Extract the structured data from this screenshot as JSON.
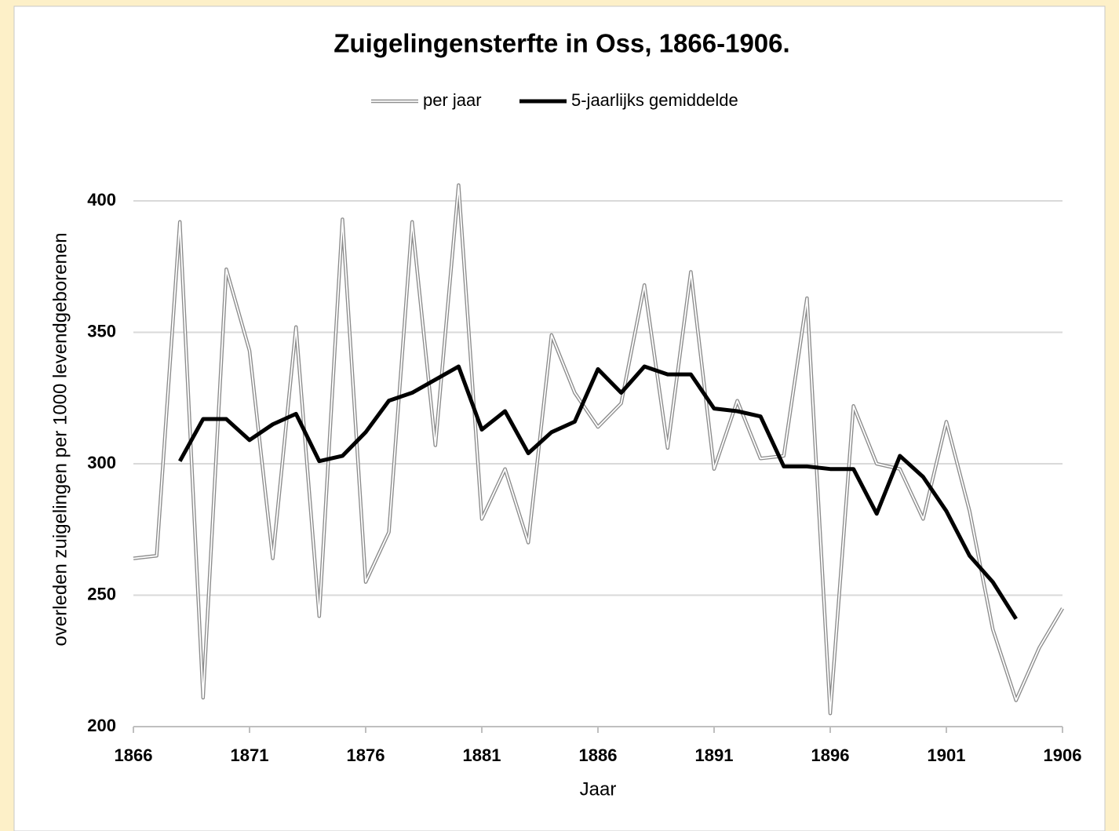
{
  "chart_data": {
    "type": "line",
    "title": "Zuigelingensterfte in Oss, 1866-1906.",
    "xlabel": "Jaar",
    "ylabel": "overleden zuigelingen per 1000 levendgeborenen",
    "x": [
      1866,
      1867,
      1868,
      1869,
      1870,
      1871,
      1872,
      1873,
      1874,
      1875,
      1876,
      1877,
      1878,
      1879,
      1880,
      1881,
      1882,
      1883,
      1884,
      1885,
      1886,
      1887,
      1888,
      1889,
      1890,
      1891,
      1892,
      1893,
      1894,
      1895,
      1896,
      1897,
      1898,
      1899,
      1900,
      1901,
      1902,
      1903,
      1904,
      1905,
      1906
    ],
    "series": [
      {
        "name": "per jaar",
        "color": "#8c8c8c",
        "style": "double",
        "values": [
          264,
          265,
          392,
          211,
          374,
          343,
          264,
          352,
          242,
          393,
          255,
          274,
          392,
          307,
          406,
          279,
          298,
          270,
          349,
          327,
          314,
          323,
          368,
          306,
          373,
          298,
          324,
          302,
          303,
          363,
          205,
          322,
          300,
          298,
          279,
          316,
          282,
          237,
          210,
          230,
          245
        ]
      },
      {
        "name": "5-jaarlijks gemiddelde",
        "color": "#000000",
        "style": "solid",
        "values": [
          null,
          null,
          301,
          317,
          317,
          309,
          315,
          319,
          301,
          303,
          312,
          324,
          327,
          332,
          337,
          313,
          320,
          304,
          312,
          316,
          336,
          327,
          337,
          334,
          334,
          321,
          320,
          318,
          299,
          299,
          298,
          298,
          281,
          303,
          295,
          282,
          265,
          255,
          241,
          null,
          null
        ]
      }
    ],
    "xlim": [
      1866,
      1906
    ],
    "xticks": [
      1866,
      1871,
      1876,
      1881,
      1886,
      1891,
      1896,
      1901,
      1906
    ],
    "ylim": [
      200,
      400
    ],
    "yticks": [
      200,
      250,
      300,
      350,
      400
    ],
    "grid": true,
    "legend": "top"
  }
}
